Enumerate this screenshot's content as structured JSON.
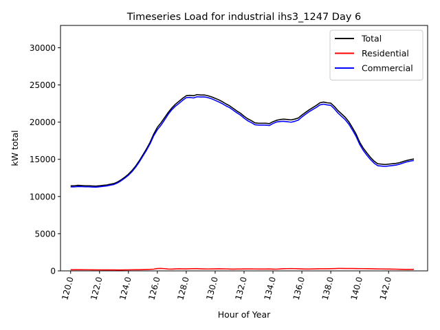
{
  "chart_data": {
    "type": "line",
    "title": "Timeseries Load for industrial ihs3_1247  Day 6",
    "xlabel": "Hour of Year",
    "ylabel": "kW total",
    "xlim": [
      119.3,
      144.7
    ],
    "ylim": [
      0,
      33000
    ],
    "x_ticks": [
      120,
      122,
      124,
      126,
      128,
      130,
      132,
      134,
      136,
      138,
      140,
      142
    ],
    "x_tick_labels": [
      "120.0",
      "122.0",
      "124.0",
      "126.0",
      "128.0",
      "130.0",
      "132.0",
      "134.0",
      "136.0",
      "138.0",
      "140.0",
      "142.0"
    ],
    "y_ticks": [
      0,
      5000,
      10000,
      15000,
      20000,
      25000,
      30000
    ],
    "y_tick_labels": [
      "0",
      "5000",
      "10000",
      "15000",
      "20000",
      "25000",
      "30000"
    ],
    "legend_position": "top-right",
    "grid": false,
    "x": [
      120.0,
      120.25,
      120.5,
      120.75,
      121.0,
      121.25,
      121.5,
      121.75,
      122.0,
      122.25,
      122.5,
      122.75,
      123.0,
      123.25,
      123.5,
      123.75,
      124.0,
      124.25,
      124.5,
      124.75,
      125.0,
      125.25,
      125.5,
      125.75,
      126.0,
      126.25,
      126.5,
      126.75,
      127.0,
      127.25,
      127.5,
      127.75,
      128.0,
      128.25,
      128.5,
      128.75,
      129.0,
      129.25,
      129.5,
      129.75,
      130.0,
      130.25,
      130.5,
      130.75,
      131.0,
      131.25,
      131.5,
      131.75,
      132.0,
      132.25,
      132.5,
      132.75,
      133.0,
      133.25,
      133.5,
      133.75,
      134.0,
      134.25,
      134.5,
      134.75,
      135.0,
      135.25,
      135.5,
      135.75,
      136.0,
      136.25,
      136.5,
      136.75,
      137.0,
      137.25,
      137.5,
      137.75,
      138.0,
      138.25,
      138.5,
      138.75,
      139.0,
      139.25,
      139.5,
      139.75,
      140.0,
      140.25,
      140.5,
      140.75,
      141.0,
      141.25,
      141.5,
      141.75,
      142.0,
      142.25,
      142.5,
      142.75,
      143.0,
      143.25,
      143.5,
      143.75
    ],
    "series": [
      {
        "name": "Total",
        "color": "#000000",
        "values": [
          11450,
          11450,
          11500,
          11480,
          11450,
          11450,
          11420,
          11400,
          11450,
          11500,
          11550,
          11650,
          11750,
          11950,
          12250,
          12600,
          13000,
          13500,
          14100,
          14800,
          15600,
          16400,
          17300,
          18400,
          19300,
          19900,
          20600,
          21300,
          21900,
          22400,
          22800,
          23200,
          23550,
          23600,
          23550,
          23700,
          23650,
          23650,
          23550,
          23400,
          23200,
          23000,
          22750,
          22450,
          22200,
          21850,
          21500,
          21200,
          20800,
          20450,
          20200,
          19900,
          19850,
          19850,
          19850,
          19800,
          20050,
          20250,
          20350,
          20400,
          20350,
          20300,
          20400,
          20550,
          20950,
          21300,
          21650,
          21950,
          22250,
          22600,
          22700,
          22600,
          22550,
          22100,
          21550,
          21100,
          20650,
          20050,
          19250,
          18400,
          17300,
          16500,
          15850,
          15250,
          14750,
          14400,
          14350,
          14300,
          14350,
          14400,
          14450,
          14550,
          14700,
          14850,
          14950,
          15050
        ]
      },
      {
        "name": "Residential",
        "color": "#ff0000",
        "values": [
          160,
          160,
          160,
          155,
          150,
          150,
          145,
          140,
          140,
          135,
          130,
          130,
          130,
          125,
          125,
          130,
          140,
          150,
          155,
          160,
          170,
          180,
          200,
          230,
          320,
          330,
          300,
          250,
          240,
          260,
          280,
          270,
          260,
          280,
          300,
          290,
          270,
          260,
          255,
          260,
          270,
          280,
          275,
          265,
          250,
          240,
          245,
          250,
          260,
          265,
          260,
          255,
          250,
          250,
          250,
          260,
          240,
          230,
          260,
          290,
          300,
          310,
          300,
          280,
          260,
          250,
          250,
          260,
          270,
          280,
          285,
          280,
          290,
          310,
          330,
          330,
          320,
          320,
          315,
          310,
          300,
          300,
          295,
          285,
          270,
          260,
          255,
          250,
          250,
          240,
          230,
          210,
          200,
          195,
          195,
          200
        ]
      },
      {
        "name": "Commercial",
        "color": "#0000ff",
        "values": [
          11290,
          11290,
          11340,
          11325,
          11300,
          11300,
          11275,
          11260,
          11310,
          11365,
          11420,
          11520,
          11620,
          11825,
          12125,
          12470,
          12860,
          13350,
          13945,
          14640,
          15430,
          16220,
          17100,
          18170,
          18980,
          19570,
          20300,
          21050,
          21660,
          22140,
          22520,
          22930,
          23290,
          23320,
          23250,
          23410,
          23380,
          23390,
          23295,
          23140,
          22930,
          22720,
          22475,
          22185,
          21950,
          21610,
          21255,
          20950,
          20540,
          20185,
          19940,
          19645,
          19600,
          19600,
          19600,
          19540,
          19810,
          20020,
          20090,
          20110,
          20050,
          19990,
          20100,
          20270,
          20690,
          21050,
          21400,
          21690,
          21980,
          22320,
          22415,
          22320,
          22260,
          21790,
          21220,
          20770,
          20330,
          19730,
          18935,
          18090,
          17000,
          16200,
          15555,
          14965,
          14480,
          14140,
          14095,
          14050,
          14100,
          14160,
          14220,
          14340,
          14500,
          14655,
          14755,
          14850
        ]
      }
    ]
  }
}
